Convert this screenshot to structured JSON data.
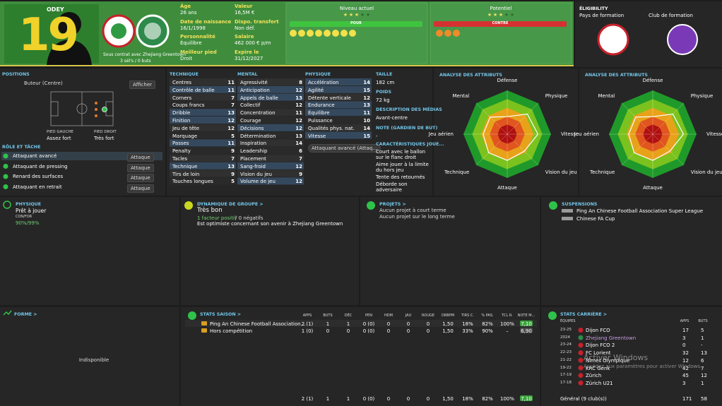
{
  "header": {
    "name": "ODEY",
    "number": "19",
    "age_label": "Âge",
    "age": "26 ans",
    "dob_label": "Date de naissance",
    "dob": "16/1/1998",
    "personality_label": "Personnalité",
    "personality": "Équilibre",
    "foot_label": "Meilleur pied",
    "foot": "Droit",
    "value_label": "Valeur",
    "value": "16,5M €",
    "transfer_label": "Dispo. transfert",
    "transfer": "Non déf.",
    "salary_label": "Salaire",
    "salary": "462 000 € p/m",
    "expires_label": "Expire le",
    "expires": "31/12/2027",
    "contract": "Sous contrat avec Zhejiang Greentown",
    "caps": "3 sél's / 0 buts",
    "current_label": "Niveau actuel",
    "current_stars": 3,
    "potential_label": "Potentiel",
    "potential_stars": 3,
    "pour": "POUR",
    "contre": "CONTRE"
  },
  "eligibility": {
    "title": "ÉLIGIBILITY",
    "training_country": "Pays de formation",
    "training_club": "Club de formation"
  },
  "positions": {
    "title": "POSITIONS",
    "position": "Buteur (Centre)",
    "show": "Afficher",
    "left_foot_label": "PIED GAUCHE",
    "left_foot": "Assez fort",
    "right_foot_label": "PIED DROIT",
    "right_foot": "Très fort",
    "roles_title": "RÔLE ET TÂCHE",
    "roles": [
      {
        "name": "Attaquant avancé",
        "duty": "Attaque"
      },
      {
        "name": "Attaquant de pressing",
        "duty": "Attaque"
      },
      {
        "name": "Renard des surfaces",
        "duty": "Attaque"
      },
      {
        "name": "Attaquant en retrait",
        "duty": "Attaque"
      }
    ]
  },
  "attributes": {
    "groups": [
      {
        "title": "TECHNIQUE",
        "items": [
          {
            "name": "Centres",
            "value": 11
          },
          {
            "name": "Contrôle de balle",
            "value": 11,
            "key": true
          },
          {
            "name": "Corners",
            "value": 7
          },
          {
            "name": "Coups francs",
            "value": 7
          },
          {
            "name": "Dribble",
            "value": 13,
            "key": true
          },
          {
            "name": "Finition",
            "value": 12,
            "key": true
          },
          {
            "name": "Jeu de tête",
            "value": 12
          },
          {
            "name": "Marquage",
            "value": 5
          },
          {
            "name": "Passes",
            "value": 11,
            "key": true
          },
          {
            "name": "Penalty",
            "value": 9
          },
          {
            "name": "Tacles",
            "value": 7
          },
          {
            "name": "Technique",
            "value": 13,
            "key": true
          },
          {
            "name": "Tirs de loin",
            "value": 9
          },
          {
            "name": "Touches longues",
            "value": 5
          }
        ]
      },
      {
        "title": "MENTAL",
        "items": [
          {
            "name": "Agressivité",
            "value": 8
          },
          {
            "name": "Anticipation",
            "value": 12,
            "key": true
          },
          {
            "name": "Appels de balle",
            "value": 13,
            "key": true
          },
          {
            "name": "Collectif",
            "value": 12
          },
          {
            "name": "Concentration",
            "value": 11
          },
          {
            "name": "Courage",
            "value": 12
          },
          {
            "name": "Décisions",
            "value": 12,
            "key": true
          },
          {
            "name": "Détermination",
            "value": 13
          },
          {
            "name": "Inspiration",
            "value": 14
          },
          {
            "name": "Leadership",
            "value": 6
          },
          {
            "name": "Placement",
            "value": 7
          },
          {
            "name": "Sang-froid",
            "value": 12,
            "key": true
          },
          {
            "name": "Vision du jeu",
            "value": 9
          },
          {
            "name": "Volume de jeu",
            "value": 12,
            "key": true
          }
        ]
      },
      {
        "title": "PHYSIQUE",
        "items": [
          {
            "name": "Accélération",
            "value": 14,
            "key": true
          },
          {
            "name": "Agilité",
            "value": 15,
            "key": true
          },
          {
            "name": "Détente verticale",
            "value": 12
          },
          {
            "name": "Endurance",
            "value": 13,
            "key": true
          },
          {
            "name": "Équilibre",
            "value": 11,
            "key": true
          },
          {
            "name": "Puissance",
            "value": 10
          },
          {
            "name": "Qualités phys. nat.",
            "value": 14
          },
          {
            "name": "Vitesse",
            "value": 15,
            "key": true
          }
        ]
      }
    ],
    "role_select": "Attaquant avancé (Attaq..."
  },
  "profile": {
    "height_label": "TAILLE",
    "height": "182 cm",
    "weight_label": "POIDS",
    "weight": "72 kg",
    "media_label": "DESCRIPTION DES MÉDIAS",
    "media": "Avant-centre",
    "gk_label": "NOTE (GARDIEN DE BUT)",
    "gk": "-",
    "traits_label": "CARACTÉRISTIQUES JOUE...",
    "traits": [
      "Court avec le ballon sur le flanc droit",
      "Aime jouer à la limite du hors jeu",
      "Tente des retournés",
      "Déborde son adversaire"
    ]
  },
  "radars": [
    {
      "title": "ANALYSE DES ATTRIBUTS",
      "axes": [
        "Défense",
        "Physique",
        "Vitesse",
        "Vision du jeu",
        "Attaque",
        "Technique",
        "Jeu aérien",
        "Mental"
      ],
      "values": [
        8,
        13,
        14,
        11,
        12,
        12,
        11,
        11
      ],
      "rlim": [
        0,
        20
      ]
    },
    {
      "title": "ANALYSE DES ATTRIBUTS",
      "axes": [
        "Défense",
        "Physique",
        "Vitesse",
        "Vision du jeu",
        "Attaque",
        "Technique",
        "Jeu aérien",
        "Mental"
      ],
      "values": [
        8,
        13,
        14,
        11,
        12,
        12,
        11,
        11
      ],
      "rlim": [
        0,
        20
      ]
    }
  ],
  "physique": {
    "title": "PHYSIQUE",
    "status": "Prêt à jouer",
    "label": "CON/FOR",
    "value": "90%/99%"
  },
  "dynamics": {
    "title": "DYNAMIQUE DE GROUPE >",
    "status": "Très bon",
    "positive": "1 facteur positif",
    "negative": "/ 0 négatifs",
    "note": "Est optimiste concernant son avenir à Zhejiang Greentown"
  },
  "projects": {
    "title": "PROJETS >",
    "short": "Aucun projet à court terme",
    "long": "Aucun projet sur le long terme"
  },
  "suspensions": {
    "title": "SUSPENSIONS",
    "items": [
      "Ping An Chinese Football Association Super League",
      "Chinese FA Cup"
    ]
  },
  "form": {
    "title": "FORME >",
    "status": "Indisponible"
  },
  "season_stats": {
    "title": "STATS SAISON >",
    "columns": [
      "APPS",
      "BUTS",
      "DÉC",
      "PEN",
      "HDM",
      "JAU",
      "ROUGE",
      "DRBPM",
      "TIRS C.",
      "% PAS.",
      "TCL R.",
      "NOTE M..."
    ],
    "rows": [
      {
        "competition": "Ping An Chinese Football Association...",
        "cells": [
          "2 (1)",
          1,
          1,
          "0 (0)",
          0,
          0,
          0,
          "1,50",
          "18%",
          "82%",
          "100%",
          "7,10"
        ]
      },
      {
        "competition": "Hors compétition",
        "cells": [
          "1 (0)",
          0,
          0,
          "0 (0)",
          0,
          0,
          0,
          "1,50",
          "33%",
          "90%",
          "–",
          "6,90"
        ]
      }
    ],
    "total": [
      "2 (1)",
      1,
      1,
      "0 (0)",
      0,
      0,
      0,
      "1,50",
      "18%",
      "82%",
      "100%",
      "7,10"
    ]
  },
  "career_stats": {
    "title": "STATS CARRIÈRE >",
    "columns": [
      "ÉQUIPES",
      "APPS",
      "BUTS"
    ],
    "rows": [
      {
        "season": "23-25",
        "club": "Dijon FCO",
        "apps": 17,
        "goals": 5
      },
      {
        "season": "2024",
        "club": "Zhejiang Greentown",
        "apps": 3,
        "goals": 1,
        "current": true
      },
      {
        "season": "23-24",
        "club": "Dijon FCO 2",
        "apps": 0,
        "goals": "-"
      },
      {
        "season": "22-23",
        "club": "FC Lorient",
        "apps": 32,
        "goals": 13
      },
      {
        "season": "21-22",
        "club": "Nîmes Olympique",
        "apps": 12,
        "goals": 6
      },
      {
        "season": "19-22",
        "club": "KRC Genk",
        "apps": 42,
        "goals": 7
      },
      {
        "season": "17-19",
        "club": "Zürich",
        "apps": 45,
        "goals": 12
      },
      {
        "season": "17-18",
        "club": "Zürich U21",
        "apps": 3,
        "goals": 1
      }
    ],
    "total": {
      "label": "Général (9 club(s))",
      "apps": 171,
      "goals": 58
    }
  },
  "watermark": {
    "title": "Activer Windows",
    "text": "Accédez aux paramètres pour activer Windows."
  }
}
